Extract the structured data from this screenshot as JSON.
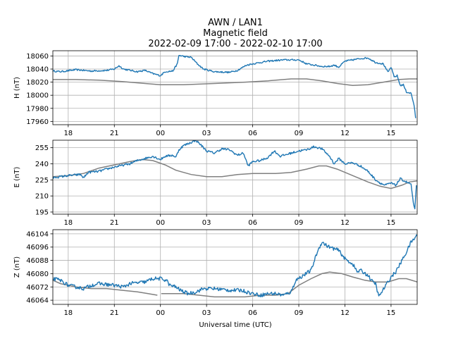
{
  "chart_data": {
    "type": "line",
    "title_lines": [
      "AWN / LAN1",
      "Magnetic field",
      "2022-02-09 17:00 - 2022-02-10 17:00"
    ],
    "xlabel": "Universal time (UTC)",
    "x_range_hours": [
      17.0,
      40.7
    ],
    "x_ticks": [
      {
        "value": 18,
        "label": "18"
      },
      {
        "value": 21,
        "label": "21"
      },
      {
        "value": 24,
        "label": "00"
      },
      {
        "value": 27,
        "label": "03"
      },
      {
        "value": 30,
        "label": "06"
      },
      {
        "value": 33,
        "label": "09"
      },
      {
        "value": 36,
        "label": "12"
      },
      {
        "value": 39,
        "label": "15"
      }
    ],
    "grid": true,
    "colors": {
      "measured": "#1f77b4",
      "baseline": "#808080",
      "grid": "#b0b0b0"
    },
    "panels": [
      {
        "ylabel": "H (nT)",
        "ylim": [
          17955,
          18068
        ],
        "yticks": [
          17960,
          17980,
          18000,
          18020,
          18040,
          18060
        ],
        "noise": 1.2,
        "measured": [
          [
            17.0,
            18037
          ],
          [
            17.5,
            18036
          ],
          [
            18.5,
            18039
          ],
          [
            19.5,
            18037
          ],
          [
            20.5,
            18038
          ],
          [
            21.0,
            18040
          ],
          [
            21.3,
            18045
          ],
          [
            21.6,
            18040
          ],
          [
            22.5,
            18036
          ],
          [
            23.0,
            18038
          ],
          [
            23.5,
            18033
          ],
          [
            24.0,
            18030
          ],
          [
            24.3,
            18036
          ],
          [
            24.8,
            18037
          ],
          [
            25.1,
            18048
          ],
          [
            25.2,
            18061
          ],
          [
            25.6,
            18059
          ],
          [
            26.0,
            18058
          ],
          [
            26.4,
            18048
          ],
          [
            26.8,
            18040
          ],
          [
            27.5,
            18036
          ],
          [
            28.5,
            18035
          ],
          [
            29.0,
            18038
          ],
          [
            29.6,
            18046
          ],
          [
            30.0,
            18048
          ],
          [
            30.5,
            18050
          ],
          [
            31.0,
            18052
          ],
          [
            32.0,
            18054
          ],
          [
            33.0,
            18054
          ],
          [
            33.5,
            18048
          ],
          [
            34.0,
            18046
          ],
          [
            34.5,
            18044
          ],
          [
            35.0,
            18044
          ],
          [
            35.3,
            18046
          ],
          [
            35.6,
            18043
          ],
          [
            36.0,
            18052
          ],
          [
            36.5,
            18054
          ],
          [
            37.0,
            18056
          ],
          [
            37.5,
            18057
          ],
          [
            38.0,
            18050
          ],
          [
            38.5,
            18048
          ],
          [
            38.8,
            18035
          ],
          [
            39.0,
            18043
          ],
          [
            39.2,
            18028
          ],
          [
            39.4,
            18030
          ],
          [
            39.6,
            18015
          ],
          [
            39.8,
            18016
          ],
          [
            40.0,
            18005
          ],
          [
            40.3,
            18003
          ],
          [
            40.5,
            17985
          ],
          [
            40.6,
            17965
          ]
        ],
        "baseline": [
          [
            17.0,
            18024
          ],
          [
            18.5,
            18024
          ],
          [
            20.0,
            18023
          ],
          [
            21.5,
            18021
          ],
          [
            23.0,
            18018
          ],
          [
            24.0,
            18016
          ],
          [
            25.5,
            18016
          ],
          [
            27.5,
            18018
          ],
          [
            29.5,
            18020
          ],
          [
            31.0,
            18022
          ],
          [
            32.5,
            18025
          ],
          [
            33.5,
            18025
          ],
          [
            34.5,
            18022
          ],
          [
            35.5,
            18018
          ],
          [
            36.5,
            18015
          ],
          [
            37.5,
            18016
          ],
          [
            38.5,
            18020
          ],
          [
            39.5,
            18024
          ],
          [
            40.2,
            18025
          ],
          [
            40.7,
            18025
          ]
        ]
      },
      {
        "ylabel": "E (nT)",
        "ylim": [
          193,
          262
        ],
        "yticks": [
          195,
          210,
          225,
          240,
          255
        ],
        "noise": 1.0,
        "measured": [
          [
            17.0,
            227
          ],
          [
            18.0,
            229
          ],
          [
            18.8,
            230
          ],
          [
            19.0,
            227
          ],
          [
            19.3,
            232
          ],
          [
            20.0,
            233
          ],
          [
            21.0,
            237
          ],
          [
            22.0,
            240
          ],
          [
            22.5,
            243
          ],
          [
            23.0,
            245
          ],
          [
            23.5,
            247
          ],
          [
            24.0,
            244
          ],
          [
            24.3,
            247
          ],
          [
            24.8,
            248
          ],
          [
            25.0,
            246
          ],
          [
            25.2,
            253
          ],
          [
            25.5,
            257
          ],
          [
            26.0,
            260
          ],
          [
            26.3,
            262
          ],
          [
            26.6,
            258
          ],
          [
            27.0,
            252
          ],
          [
            27.5,
            250
          ],
          [
            28.0,
            254
          ],
          [
            28.5,
            253
          ],
          [
            29.0,
            248
          ],
          [
            29.4,
            250
          ],
          [
            29.7,
            238
          ],
          [
            30.0,
            242
          ],
          [
            30.5,
            243
          ],
          [
            31.0,
            246
          ],
          [
            31.4,
            252
          ],
          [
            31.8,
            247
          ],
          [
            32.5,
            250
          ],
          [
            33.0,
            252
          ],
          [
            33.5,
            253
          ],
          [
            34.0,
            256
          ],
          [
            34.5,
            254
          ],
          [
            35.0,
            247
          ],
          [
            35.3,
            240
          ],
          [
            35.6,
            245
          ],
          [
            36.0,
            240
          ],
          [
            36.5,
            241
          ],
          [
            37.0,
            238
          ],
          [
            37.5,
            233
          ],
          [
            38.0,
            225
          ],
          [
            38.3,
            222
          ],
          [
            38.6,
            220
          ],
          [
            39.0,
            222
          ],
          [
            39.3,
            220
          ],
          [
            39.6,
            226
          ],
          [
            40.0,
            223
          ],
          [
            40.3,
            221
          ],
          [
            40.45,
            203
          ],
          [
            40.55,
            197
          ],
          [
            40.65,
            220
          ]
        ],
        "baseline": [
          [
            17.0,
            228
          ],
          [
            18.0,
            229
          ],
          [
            19.0,
            231
          ],
          [
            20.0,
            236
          ],
          [
            21.0,
            239
          ],
          [
            22.0,
            242
          ],
          [
            22.8,
            244
          ],
          [
            23.5,
            243
          ],
          [
            24.3,
            239
          ],
          [
            25.0,
            234
          ],
          [
            26.0,
            230
          ],
          [
            27.0,
            228
          ],
          [
            28.0,
            228
          ],
          [
            29.0,
            230
          ],
          [
            30.0,
            231
          ],
          [
            31.5,
            231
          ],
          [
            32.5,
            232
          ],
          [
            33.5,
            235
          ],
          [
            34.3,
            238
          ],
          [
            34.8,
            238
          ],
          [
            35.5,
            235
          ],
          [
            36.5,
            229
          ],
          [
            37.5,
            223
          ],
          [
            38.3,
            219
          ],
          [
            39.0,
            217
          ],
          [
            39.7,
            220
          ],
          [
            40.2,
            223
          ],
          [
            40.7,
            224
          ]
        ]
      },
      {
        "ylabel": "Z (nT)",
        "ylim": [
          46061.5,
          46106.5
        ],
        "yticks": [
          46064,
          46072,
          46080,
          46088,
          46096,
          46104
        ],
        "noise": 1.1,
        "measured": [
          [
            17.0,
            46077
          ],
          [
            17.5,
            46076
          ],
          [
            18.0,
            46073
          ],
          [
            18.5,
            46072
          ],
          [
            19.0,
            46071
          ],
          [
            19.5,
            46073
          ],
          [
            20.0,
            46074
          ],
          [
            21.0,
            46073
          ],
          [
            21.6,
            46072
          ],
          [
            22.0,
            46074
          ],
          [
            23.0,
            46075
          ],
          [
            23.5,
            46077
          ],
          [
            24.0,
            46077
          ],
          [
            24.4,
            46076
          ],
          [
            24.6,
            46073
          ],
          [
            25.0,
            46072
          ],
          [
            25.3,
            46070
          ],
          [
            25.8,
            46068
          ],
          [
            26.3,
            46069
          ],
          [
            26.8,
            46071
          ],
          [
            27.5,
            46071
          ],
          [
            28.5,
            46070
          ],
          [
            29.3,
            46070
          ],
          [
            29.6,
            46069
          ],
          [
            30.0,
            46068
          ],
          [
            30.5,
            46067
          ],
          [
            31.0,
            46068
          ],
          [
            31.5,
            46068
          ],
          [
            32.0,
            46067
          ],
          [
            32.5,
            46069
          ],
          [
            32.8,
            46076
          ],
          [
            33.3,
            46079
          ],
          [
            33.8,
            46082
          ],
          [
            34.2,
            46093
          ],
          [
            34.5,
            46099
          ],
          [
            34.8,
            46097
          ],
          [
            35.0,
            46096
          ],
          [
            35.3,
            46095
          ],
          [
            35.6,
            46094
          ],
          [
            36.0,
            46089
          ],
          [
            36.3,
            46087
          ],
          [
            36.5,
            46086
          ],
          [
            36.8,
            46081
          ],
          [
            37.0,
            46082
          ],
          [
            37.5,
            46079
          ],
          [
            37.8,
            46075
          ],
          [
            38.0,
            46074
          ],
          [
            38.2,
            46066
          ],
          [
            38.4,
            46069
          ],
          [
            38.6,
            46072
          ],
          [
            39.0,
            46078
          ],
          [
            39.3,
            46081
          ],
          [
            39.6,
            46086
          ],
          [
            40.0,
            46093
          ],
          [
            40.3,
            46099
          ],
          [
            40.7,
            46103
          ]
        ],
        "baseline": [
          [
            17.0,
            46076
          ],
          [
            17.5,
            46074
          ],
          [
            18.0,
            46073
          ],
          [
            18.5,
            46072
          ],
          [
            19.5,
            46071
          ],
          [
            20.5,
            46071
          ],
          [
            21.5,
            46070
          ],
          [
            22.5,
            46069
          ],
          [
            23.2,
            46068
          ],
          [
            23.8,
            46067
          ],
          [
            24.0,
            null
          ],
          [
            24.05,
            46068
          ],
          [
            25.5,
            46068
          ],
          [
            26.5,
            46067
          ],
          [
            27.5,
            46066
          ],
          [
            28.5,
            46066
          ],
          [
            29.5,
            46066
          ],
          [
            30.5,
            46067
          ],
          [
            31.5,
            46067
          ],
          [
            32.3,
            46068
          ],
          [
            33.0,
            46073
          ],
          [
            33.8,
            46077
          ],
          [
            34.5,
            46080
          ],
          [
            35.0,
            46081
          ],
          [
            35.8,
            46080
          ],
          [
            36.5,
            46078
          ],
          [
            37.3,
            46076
          ],
          [
            38.0,
            46075
          ],
          [
            38.8,
            46075
          ],
          [
            39.5,
            46077
          ],
          [
            40.0,
            46077
          ],
          [
            40.7,
            46075
          ]
        ]
      }
    ]
  }
}
